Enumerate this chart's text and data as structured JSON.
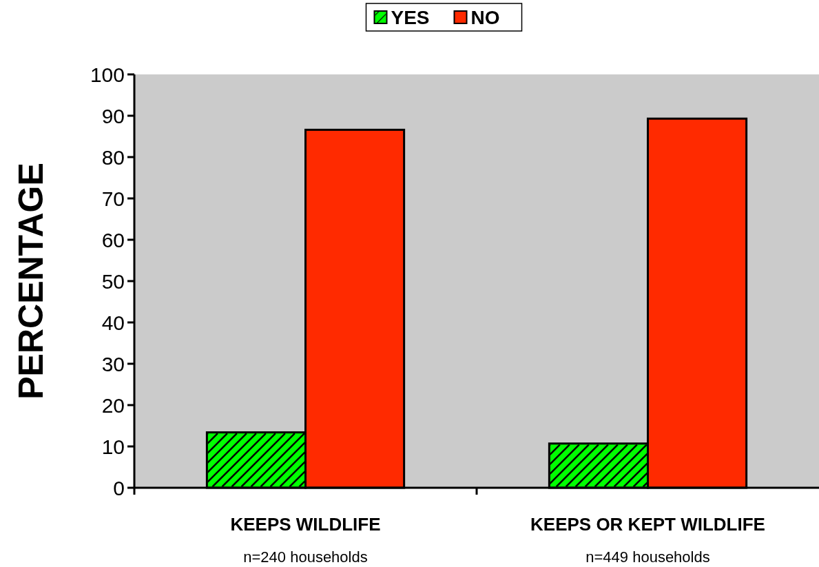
{
  "chart_data": {
    "type": "bar",
    "ylabel": "PERCENTAGE",
    "categories": [
      "KEEPS WILDLIFE",
      "KEEPS OR KEPT WILDLIFE"
    ],
    "series": [
      {
        "name": "YES",
        "color": "#00ff00",
        "values": [
          13.4,
          10.7
        ]
      },
      {
        "name": "NO",
        "color": "#ff2a00",
        "values": [
          86.6,
          89.3
        ]
      }
    ],
    "ylim": [
      0,
      100
    ],
    "yticks": [
      0,
      10,
      20,
      30,
      40,
      50,
      60,
      70,
      80,
      90,
      100
    ],
    "grid": false,
    "legend": "top",
    "annotations": [
      "n=240 households",
      "n=449 households"
    ]
  }
}
